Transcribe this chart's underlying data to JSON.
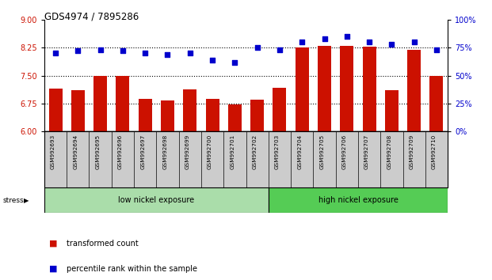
{
  "title": "GDS4974 / 7895286",
  "categories": [
    "GSM992693",
    "GSM992694",
    "GSM992695",
    "GSM992696",
    "GSM992697",
    "GSM992698",
    "GSM992699",
    "GSM992700",
    "GSM992701",
    "GSM992702",
    "GSM992703",
    "GSM992704",
    "GSM992705",
    "GSM992706",
    "GSM992707",
    "GSM992708",
    "GSM992709",
    "GSM992710"
  ],
  "bar_values": [
    7.15,
    7.1,
    7.5,
    7.5,
    6.88,
    6.84,
    7.13,
    6.88,
    6.72,
    6.86,
    7.18,
    8.25,
    8.3,
    8.3,
    8.27,
    7.12,
    8.18,
    7.5
  ],
  "dot_values": [
    70,
    72,
    73,
    72,
    70,
    69,
    70,
    64,
    62,
    75,
    73,
    80,
    83,
    85,
    80,
    78,
    80,
    73
  ],
  "ylim_left": [
    6,
    9
  ],
  "ylim_right": [
    0,
    100
  ],
  "yticks_left": [
    6,
    6.75,
    7.5,
    8.25,
    9
  ],
  "yticks_right": [
    0,
    25,
    50,
    75,
    100
  ],
  "bar_color": "#cc1100",
  "dot_color": "#0000cc",
  "hline_values": [
    6.75,
    7.5,
    8.25
  ],
  "group1_label": "low nickel exposure",
  "group2_label": "high nickel exposure",
  "group1_count": 10,
  "stress_label": "stress",
  "legend_bar": "transformed count",
  "legend_dot": "percentile rank within the sample",
  "group1_color": "#aaddaa",
  "group2_color": "#55cc55",
  "cat_box_color": "#cccccc",
  "tick_label_color_left": "#cc1100",
  "tick_label_color_right": "#0000cc"
}
